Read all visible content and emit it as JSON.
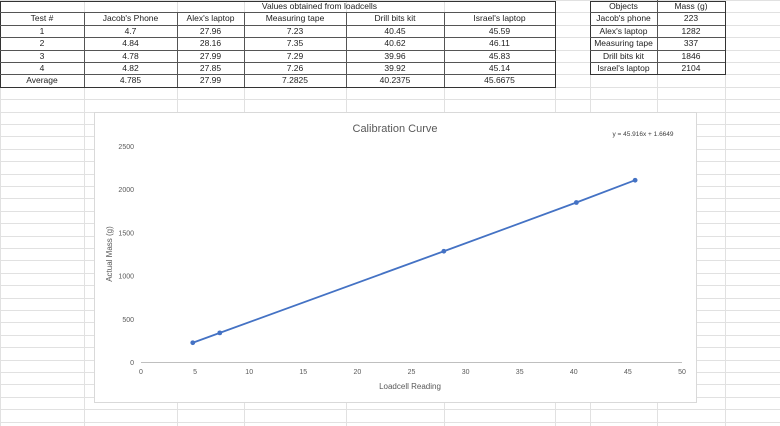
{
  "loadcell_table": {
    "group_header": "Values obtained from loadcells",
    "headers": [
      "Test #",
      "Jacob's Phone",
      "Alex's laptop",
      "Measuring tape",
      "Drill bits kit",
      "Israel's laptop"
    ],
    "rows": [
      [
        "1",
        "4.7",
        "27.96",
        "7.23",
        "40.45",
        "45.59"
      ],
      [
        "2",
        "4.84",
        "28.16",
        "7.35",
        "40.62",
        "46.11"
      ],
      [
        "3",
        "4.78",
        "27.99",
        "7.29",
        "39.96",
        "45.83"
      ],
      [
        "4",
        "4.82",
        "27.85",
        "7.26",
        "39.92",
        "45.14"
      ],
      [
        "Average",
        "4.785",
        "27.99",
        "7.2825",
        "40.2375",
        "45.6675"
      ]
    ]
  },
  "mass_table": {
    "headers": [
      "Objects",
      "Mass (g)"
    ],
    "rows": [
      [
        "Jacob's phone",
        "223"
      ],
      [
        "Alex's laptop",
        "1282"
      ],
      [
        "Measuring tape",
        "337"
      ],
      [
        "Drill bits kit",
        "1846"
      ],
      [
        "Israel's laptop",
        "2104"
      ]
    ]
  },
  "chart_data": {
    "type": "scatter",
    "title": "Calibration Curve",
    "xlabel": "Loadcell Reading",
    "ylabel": "Actual Mass (g)",
    "xlim": [
      0,
      50
    ],
    "ylim": [
      0,
      2500
    ],
    "xticks": [
      0,
      5,
      10,
      15,
      20,
      25,
      30,
      35,
      40,
      45,
      50
    ],
    "yticks": [
      0,
      500,
      1000,
      1500,
      2000,
      2500
    ],
    "trendline_label": "y = 45.916x + 1.6649",
    "trendline": {
      "slope": 45.916,
      "intercept": 1.6649
    },
    "points": [
      {
        "x": 4.785,
        "y": 223
      },
      {
        "x": 7.2825,
        "y": 337
      },
      {
        "x": 27.99,
        "y": 1282
      },
      {
        "x": 40.2375,
        "y": 1846
      },
      {
        "x": 45.6675,
        "y": 2104
      }
    ],
    "series_color": "#4472c4",
    "grid": false
  }
}
